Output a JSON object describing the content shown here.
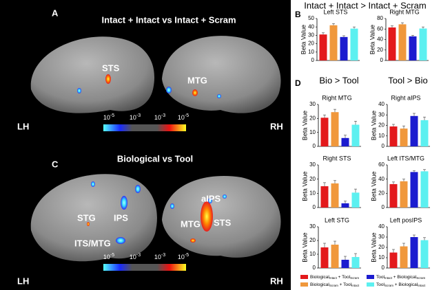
{
  "panels": {
    "A": "A",
    "B": "B",
    "C": "C",
    "D": "D"
  },
  "brain_a": {
    "title": "Intact + Intact vs Intact + Scram",
    "labels": [
      "STS",
      "MTG"
    ],
    "lh": "LH",
    "rh": "RH"
  },
  "brain_c": {
    "title": "Biological vs Tool",
    "labels": [
      "STG",
      "IPS",
      "ITS/MTG",
      "aIPS",
      "MTG",
      "STS"
    ],
    "lh": "LH",
    "rh": "RH"
  },
  "colorbar": [
    {
      "base": "10",
      "exp": "-5"
    },
    {
      "base": "10",
      "exp": "-3"
    },
    {
      "base": "10",
      "exp": "-3"
    },
    {
      "base": "10",
      "exp": "-5"
    }
  ],
  "headings": {
    "b": "Intact + Intact > Intact + Scram",
    "d_left": "Bio > Tool",
    "d_right": "Tool > Bio"
  },
  "colors": [
    "#e3191c",
    "#f0983c",
    "#1c1ccf",
    "#5cf0f0"
  ],
  "legend": [
    {
      "text": [
        "Biological",
        "Intact",
        " + Tool",
        "Scram"
      ]
    },
    {
      "text": [
        "Biological",
        "Scram",
        " + Tool",
        "Intact"
      ]
    },
    {
      "text": [
        "Tool",
        "Intact",
        " + Biological",
        "Scram"
      ]
    },
    {
      "text": [
        "Tool",
        "Scram",
        " + Biological",
        "Intact"
      ]
    }
  ],
  "chart_data": [
    {
      "type": "bar",
      "title": "Left STS",
      "ylabel": "Beta Value",
      "values": [
        31,
        42,
        28,
        38
      ],
      "errors": [
        2,
        2,
        1.5,
        2
      ],
      "ylim": [
        0,
        50
      ],
      "yticks": [
        0,
        10,
        20,
        30,
        40,
        50
      ]
    },
    {
      "type": "bar",
      "title": "Right MTG",
      "ylabel": "Beta Value",
      "values": [
        63,
        69,
        46,
        61
      ],
      "errors": [
        3,
        3,
        2,
        3
      ],
      "ylim": [
        0,
        80
      ],
      "yticks": [
        0,
        20,
        40,
        60,
        80
      ]
    },
    {
      "type": "bar",
      "title": "Right MTG",
      "ylabel": "Beta Value",
      "values": [
        20.5,
        24.5,
        6,
        15.5
      ],
      "errors": [
        2,
        2,
        2,
        2.5
      ],
      "ylim": [
        0,
        30
      ],
      "yticks": [
        0,
        10,
        20,
        30
      ]
    },
    {
      "type": "bar",
      "title": "Right aIPS",
      "ylabel": "Beta Value",
      "values": [
        19,
        17,
        29,
        25
      ],
      "errors": [
        2,
        2.5,
        2.5,
        3
      ],
      "ylim": [
        0,
        40
      ],
      "yticks": [
        0,
        10,
        20,
        30,
        40
      ]
    },
    {
      "type": "bar",
      "title": "Right STS",
      "ylabel": "Beta Value",
      "values": [
        15,
        17,
        3,
        10.5
      ],
      "errors": [
        2.5,
        2,
        1.5,
        2.5
      ],
      "ylim": [
        0,
        30
      ],
      "yticks": [
        0,
        10,
        20,
        30
      ]
    },
    {
      "type": "bar",
      "title": "Left ITS/MTG",
      "ylabel": "Beta Value",
      "values": [
        33,
        37,
        50,
        51
      ],
      "errors": [
        3,
        3,
        2,
        2.5
      ],
      "ylim": [
        0,
        60
      ],
      "yticks": [
        0,
        20,
        40,
        60
      ]
    },
    {
      "type": "bar",
      "title": "Left STG",
      "ylabel": "Beta Value",
      "values": [
        15,
        17,
        6,
        8
      ],
      "errors": [
        3,
        2.5,
        2.5,
        2.5
      ],
      "ylim": [
        0,
        30
      ],
      "yticks": [
        0,
        10,
        20,
        30
      ]
    },
    {
      "type": "bar",
      "title": "Left posIPS",
      "ylabel": "Beta Value",
      "values": [
        15,
        21,
        30,
        27
      ],
      "errors": [
        3,
        3,
        2,
        2.5
      ],
      "ylim": [
        0,
        40
      ],
      "yticks": [
        0,
        10,
        20,
        30,
        40
      ]
    }
  ]
}
